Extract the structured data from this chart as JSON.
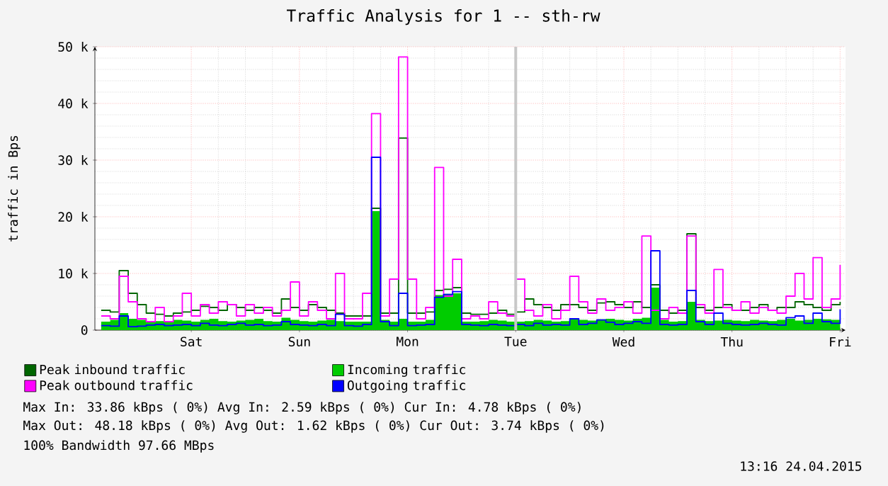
{
  "chart_data": {
    "type": "step",
    "title": "Traffic Analysis for 1 -- sth-rw",
    "ylabel": "traffic in Bps",
    "categories": [
      null,
      null,
      null,
      null,
      null,
      null,
      null,
      null,
      null,
      null,
      "Sat",
      null,
      null,
      null,
      null,
      null,
      null,
      null,
      null,
      null,
      null,
      null,
      "Sun",
      null,
      null,
      null,
      null,
      null,
      null,
      null,
      null,
      null,
      null,
      null,
      "Mon",
      null,
      null,
      null,
      null,
      null,
      null,
      null,
      null,
      null,
      null,
      null,
      "Tue",
      null,
      null,
      null,
      null,
      null,
      null,
      null,
      null,
      null,
      null,
      null,
      "Wed",
      null,
      null,
      null,
      null,
      null,
      null,
      null,
      null,
      null,
      null,
      null,
      "Thu",
      null,
      null,
      null,
      null,
      null,
      null,
      null,
      null,
      null,
      null,
      null,
      "Fri"
    ],
    "series": [
      {
        "name": "Peak inbound traffic",
        "color": "#006600",
        "values": [
          3500,
          3200,
          10500,
          6500,
          4500,
          3000,
          2800,
          2500,
          3000,
          3200,
          3500,
          4200,
          4000,
          3500,
          4500,
          4000,
          3500,
          4000,
          3500,
          3000,
          5500,
          4000,
          3500,
          4500,
          4000,
          3500,
          3000,
          2500,
          2500,
          2500,
          21500,
          3000,
          3000,
          33900,
          3000,
          3000,
          3200,
          7000,
          7200,
          7500,
          3000,
          2800,
          2800,
          3000,
          3500,
          2800,
          3200,
          5500,
          4500,
          4000,
          3500,
          4500,
          4500,
          4000,
          3500,
          4800,
          5000,
          4500,
          4000,
          5000,
          4000,
          8000,
          3500,
          3000,
          3500,
          17000,
          4000,
          3500,
          4000,
          4500,
          3500,
          3500,
          4000,
          4500,
          3500,
          4000,
          4000,
          5000,
          4500,
          4000,
          3500,
          4500,
          5000
        ]
      },
      {
        "name": "Incoming traffic",
        "type": "area",
        "color": "#00cc00",
        "values": [
          1500,
          1800,
          3000,
          2000,
          1800,
          1500,
          1600,
          1500,
          1800,
          1700,
          1500,
          1800,
          2000,
          1600,
          1500,
          1700,
          1800,
          2000,
          1600,
          1500,
          2200,
          1800,
          1600,
          1500,
          1700,
          1800,
          1600,
          1500,
          1500,
          1500,
          21000,
          1800,
          1500,
          2000,
          1500,
          1500,
          1800,
          6200,
          6400,
          6500,
          1500,
          1500,
          1600,
          1800,
          1700,
          1500,
          1500,
          1600,
          1800,
          1700,
          1500,
          1600,
          2000,
          1800,
          1700,
          1900,
          2000,
          1800,
          1700,
          2000,
          2200,
          7500,
          1800,
          1500,
          1600,
          5000,
          1800,
          1600,
          1700,
          1800,
          1700,
          1600,
          1800,
          1700,
          1600,
          1800,
          2000,
          1700,
          1800,
          2000,
          1900,
          1800,
          4000
        ]
      },
      {
        "name": "Peak outbound traffic",
        "color": "#ff00ff",
        "values": [
          2500,
          2000,
          9500,
          5000,
          2000,
          1500,
          4000,
          1500,
          2500,
          6500,
          2500,
          4500,
          3000,
          5000,
          4500,
          2500,
          4500,
          3000,
          4000,
          2500,
          3500,
          8500,
          2500,
          5000,
          3500,
          2000,
          10000,
          2000,
          2000,
          6500,
          38200,
          2500,
          9000,
          48200,
          9000,
          2000,
          4000,
          28700,
          6000,
          12500,
          2000,
          2500,
          2000,
          5000,
          3000,
          2500,
          9000,
          3500,
          2500,
          4500,
          2000,
          3500,
          9500,
          5000,
          3000,
          5500,
          3500,
          4000,
          5000,
          3000,
          16600,
          3500,
          2000,
          4000,
          3000,
          16600,
          4500,
          3000,
          10700,
          4000,
          3500,
          5000,
          3000,
          4000,
          3500,
          3000,
          6000,
          10000,
          5500,
          12800,
          4000,
          5500,
          11500
        ]
      },
      {
        "name": "Outgoing traffic",
        "color": "#0000ff",
        "values": [
          800,
          700,
          2500,
          600,
          700,
          900,
          1000,
          800,
          900,
          1000,
          800,
          1200,
          900,
          800,
          1000,
          1200,
          900,
          1000,
          800,
          900,
          1500,
          1000,
          900,
          800,
          1000,
          800,
          2800,
          800,
          700,
          1000,
          30500,
          1500,
          800,
          6500,
          800,
          900,
          1000,
          5800,
          6300,
          6800,
          1000,
          900,
          800,
          1000,
          900,
          800,
          1000,
          800,
          1200,
          900,
          1000,
          900,
          2000,
          1000,
          1200,
          1800,
          1400,
          1000,
          1200,
          1500,
          1200,
          14000,
          1000,
          900,
          1000,
          7000,
          1500,
          1000,
          3000,
          1200,
          1000,
          900,
          1000,
          1200,
          1000,
          900,
          2200,
          2500,
          1200,
          3000,
          1500,
          1200,
          3700
        ]
      }
    ],
    "ylim": [
      0,
      50000
    ],
    "yticks": [
      0,
      {
        "value": 10000,
        "label": "10 k"
      },
      {
        "value": 20000,
        "label": "20 k"
      },
      {
        "value": 30000,
        "label": "30 k"
      },
      {
        "value": 40000,
        "label": "40 k"
      },
      {
        "value": 50000,
        "label": "50 k"
      }
    ],
    "grid": true,
    "legend": "bottom",
    "ref_lines": [
      {
        "axis": "x",
        "value": "Tue",
        "color": "#c8c8c8"
      }
    ],
    "annotations": [
      "Max In:  33.86 kBps (  0%)  Avg In:   2.59 kBps (  0%)  Cur In:   4.78 kBps (  0%)",
      "Max Out: 48.18 kBps (  0%)  Avg Out:  1.62 kBps (  0%)  Cur Out:  3.74 kBps (  0%)",
      "100% Bandwidth 97.66 MBps",
      "13:16 24.04.2015"
    ]
  }
}
